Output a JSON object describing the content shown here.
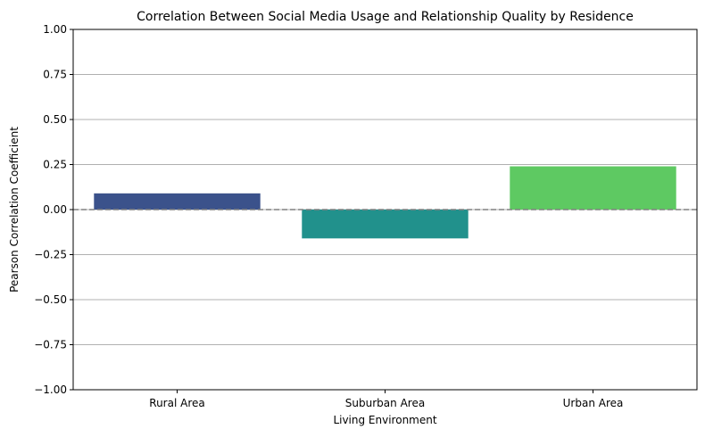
{
  "chart_data": {
    "type": "bar",
    "title": "Correlation Between Social Media Usage and Relationship Quality by Residence",
    "xlabel": "Living Environment",
    "ylabel": "Pearson Correlation Coefficient",
    "categories": [
      "Rural Area",
      "Suburban Area",
      "Urban Area"
    ],
    "values": [
      0.09,
      -0.16,
      0.24
    ],
    "colors": [
      "#3b528b",
      "#21918c",
      "#5ec962"
    ],
    "ylim": [
      -1.0,
      1.0
    ],
    "yticks": [
      -1.0,
      -0.75,
      -0.5,
      -0.25,
      0.0,
      0.25,
      0.5,
      0.75,
      1.0
    ],
    "ytick_labels": [
      "−1.00",
      "−0.75",
      "−0.50",
      "−0.25",
      "0.00",
      "0.25",
      "0.50",
      "0.75",
      "1.00"
    ],
    "grid": "y",
    "reference_line": {
      "y": 0.0,
      "style": "dashed",
      "color": "#808080"
    }
  }
}
